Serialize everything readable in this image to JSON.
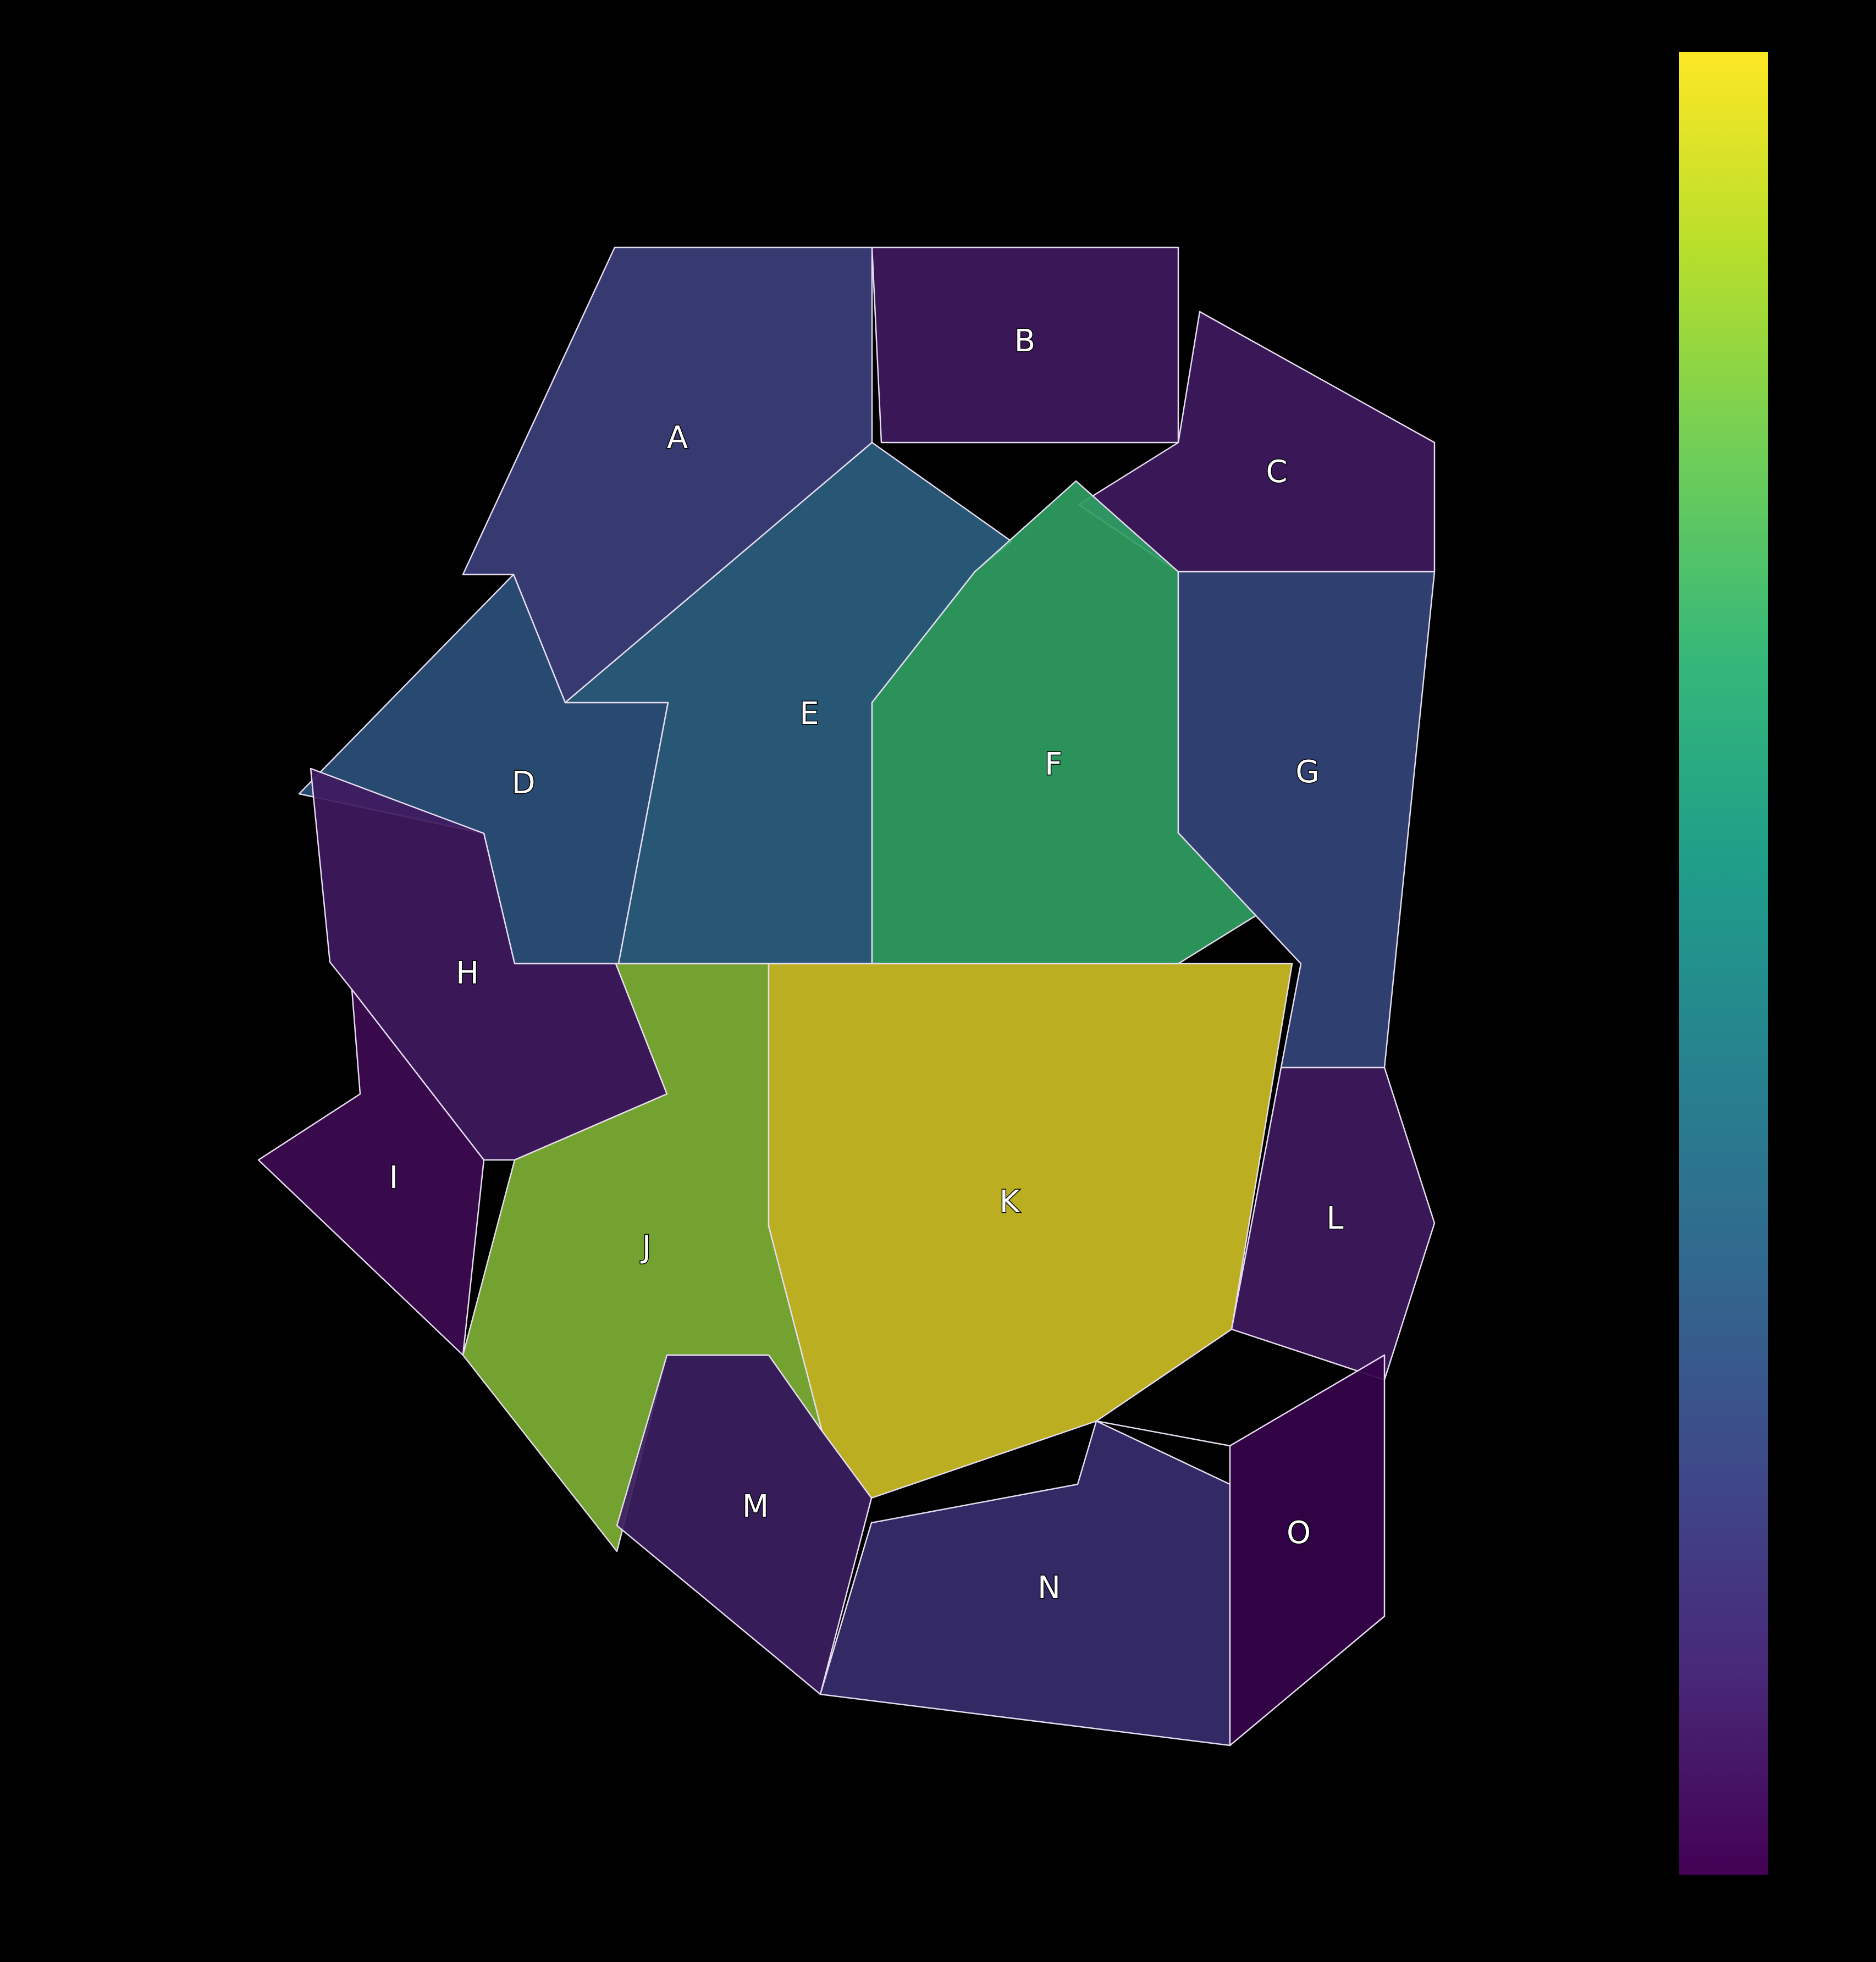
{
  "regions": [
    {
      "id": "A",
      "label": "A",
      "color": "#3b3f7a"
    },
    {
      "id": "B",
      "label": "B",
      "color": "#3f1a5e"
    },
    {
      "id": "C",
      "label": "C",
      "color": "#3f1a5e"
    },
    {
      "id": "D",
      "label": "D",
      "color": "#2d507a"
    },
    {
      "id": "E",
      "label": "E",
      "color": "#2a5e7e"
    },
    {
      "id": "F",
      "label": "F",
      "color": "#2f9f62"
    },
    {
      "id": "G",
      "label": "G",
      "color": "#33457a"
    },
    {
      "id": "H",
      "label": "H",
      "color": "#3f1a5e"
    },
    {
      "id": "I",
      "label": "I",
      "color": "#3d0b52"
    },
    {
      "id": "J",
      "label": "J",
      "color": "#7eb034"
    },
    {
      "id": "K",
      "label": "K",
      "color": "#cbbd23"
    },
    {
      "id": "L",
      "label": "L",
      "color": "#3f1a5e"
    },
    {
      "id": "M",
      "label": "M",
      "color": "#3c1e62"
    },
    {
      "id": "N",
      "label": "N",
      "color": "#372c6c"
    },
    {
      "id": "O",
      "label": "O",
      "color": "#35024a"
    }
  ],
  "colorbar": {
    "colormap": "viridis",
    "stops": [
      "#440154",
      "#482878",
      "#3e4989",
      "#31688e",
      "#26828e",
      "#1f9e89",
      "#35b779",
      "#6ece58",
      "#b5de2b",
      "#fde725"
    ]
  }
}
